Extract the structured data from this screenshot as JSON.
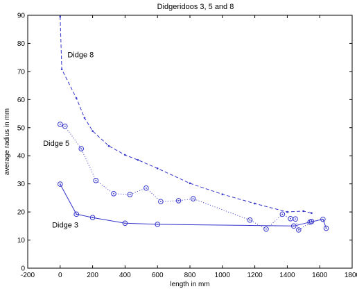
{
  "chart_data": {
    "type": "line",
    "title": "Didgeridoos 3, 5 and 8",
    "xlabel": "length in mm",
    "ylabel": "average radius in mm",
    "xlim": [
      -200,
      1800
    ],
    "ylim": [
      0,
      90
    ],
    "xticks": [
      -200,
      0,
      200,
      400,
      600,
      800,
      1000,
      1200,
      1400,
      1600,
      1800
    ],
    "yticks": [
      0,
      10,
      20,
      30,
      40,
      50,
      60,
      70,
      80,
      90
    ],
    "grid": false,
    "legend": "none",
    "series_color": "#3333cc",
    "series": [
      {
        "style": "dashed",
        "marker": "dot",
        "x": [
          0,
          10,
          100,
          150,
          200,
          300,
          400,
          480,
          600,
          800,
          1000,
          1200,
          1400,
          1500,
          1550
        ],
        "y": [
          89.5,
          70.8,
          60.5,
          53.5,
          48.8,
          43.5,
          40.3,
          38.5,
          35.5,
          30.2,
          26.3,
          23.0,
          20.0,
          20.3,
          19.6
        ]
      },
      {
        "style": "dotted",
        "marker": "circle-dot",
        "x": [
          0,
          30,
          130,
          220,
          330,
          430,
          530,
          620,
          730,
          820,
          1170,
          1270,
          1370,
          1420,
          1450,
          1470,
          1550
        ],
        "y": [
          51.2,
          50.5,
          42.5,
          31.2,
          26.5,
          26.2,
          28.5,
          23.7,
          24.0,
          24.7,
          17.1,
          13.9,
          19.2,
          17.6,
          17.5,
          13.6,
          16.6
        ]
      },
      {
        "style": "solid",
        "marker": "circle-dot",
        "x": [
          0,
          100,
          200,
          400,
          600,
          1440,
          1540,
          1620,
          1640
        ],
        "y": [
          29.9,
          19.2,
          18.0,
          16.0,
          15.6,
          15.0,
          16.4,
          17.4,
          14.2
        ]
      }
    ],
    "annotations": [
      {
        "text": "Didge  8",
        "x": 45,
        "y": 75
      },
      {
        "text": "Didge  5",
        "x": -105,
        "y": 43.5
      },
      {
        "text": "Didge  3",
        "x": -50,
        "y": 14.5
      }
    ]
  }
}
